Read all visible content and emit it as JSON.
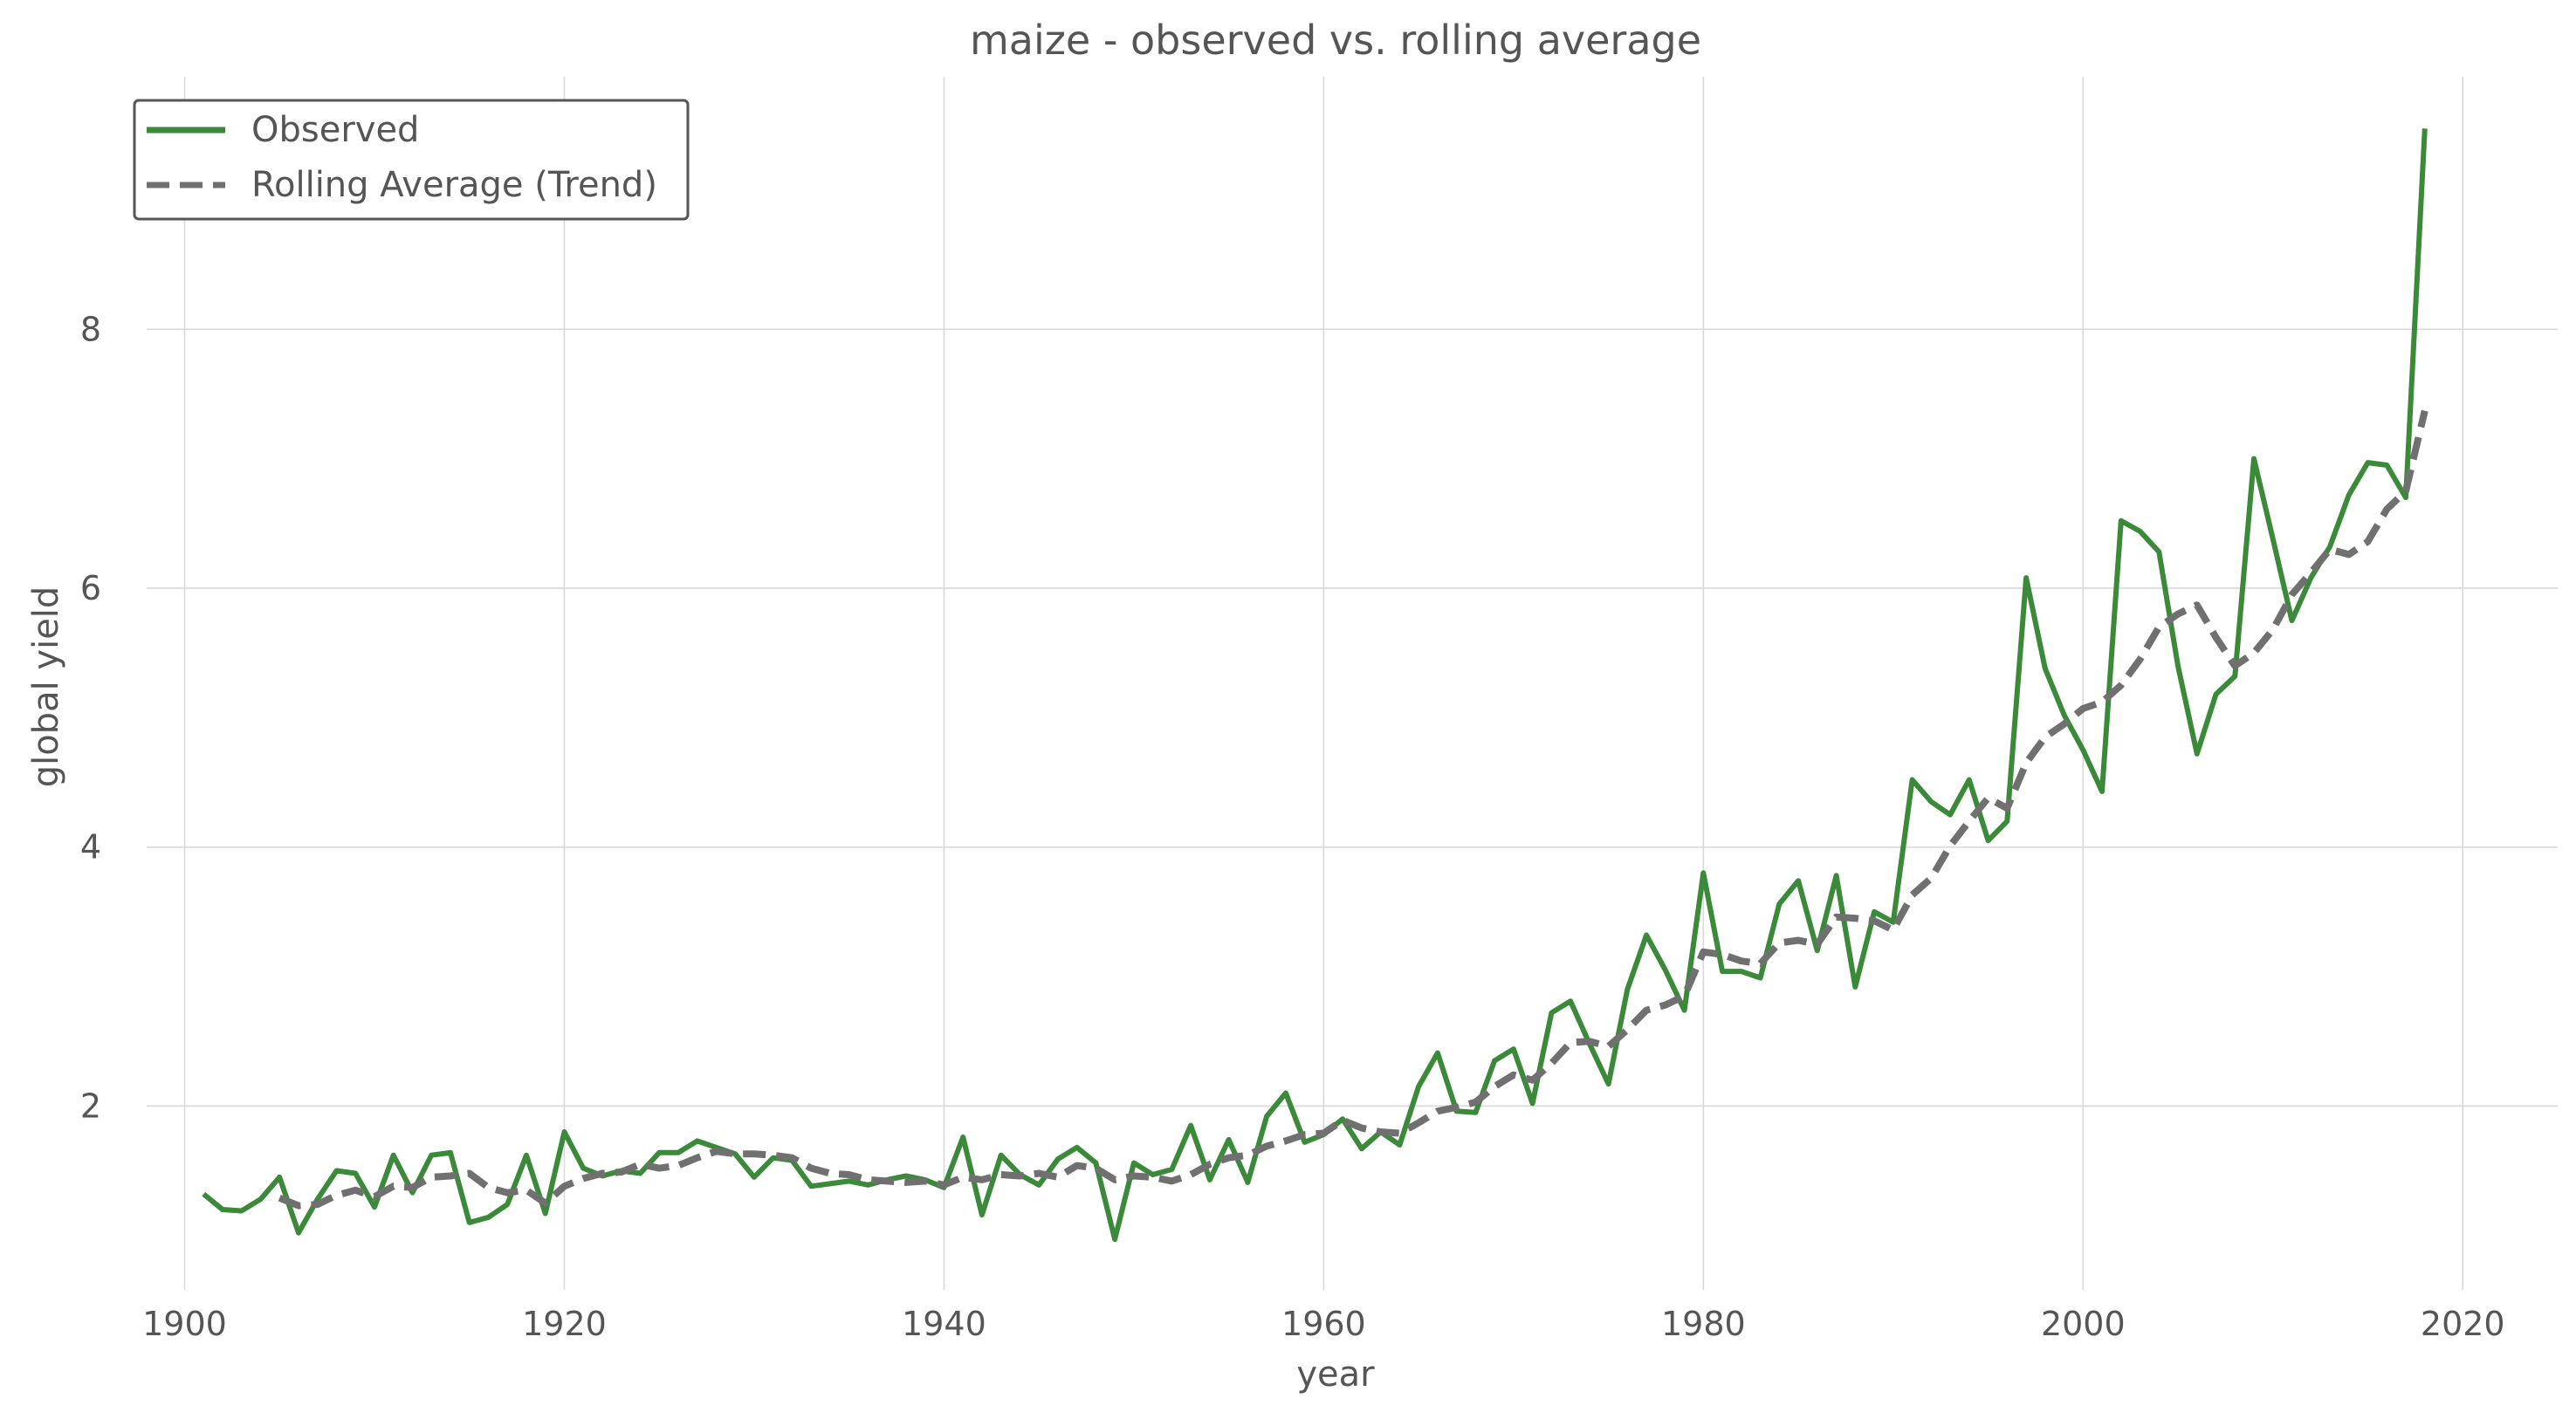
{
  "chart_data": {
    "type": "line",
    "title": "maize - observed vs. rolling average",
    "xlabel": "year",
    "ylabel": "global yield",
    "xlim": [
      1898,
      2025
    ],
    "ylim": [
      0.58,
      9.95
    ],
    "xticks": [
      1900,
      1920,
      1940,
      1960,
      1980,
      2000,
      2020
    ],
    "yticks": [
      2,
      4,
      6,
      8
    ],
    "grid": true,
    "legend_position": "top-left",
    "series": [
      {
        "name": "Observed",
        "color": "#3a8a3a",
        "style": "solid",
        "x": [
          1901,
          1902,
          1903,
          1904,
          1905,
          1906,
          1907,
          1908,
          1909,
          1910,
          1911,
          1912,
          1913,
          1914,
          1915,
          1916,
          1917,
          1918,
          1919,
          1920,
          1921,
          1922,
          1923,
          1924,
          1925,
          1926,
          1927,
          1928,
          1929,
          1930,
          1931,
          1932,
          1933,
          1934,
          1935,
          1936,
          1937,
          1938,
          1939,
          1940,
          1941,
          1942,
          1943,
          1944,
          1945,
          1946,
          1947,
          1948,
          1949,
          1950,
          1951,
          1952,
          1953,
          1954,
          1955,
          1956,
          1957,
          1958,
          1959,
          1960,
          1961,
          1962,
          1963,
          1964,
          1965,
          1966,
          1967,
          1968,
          1969,
          1970,
          1971,
          1972,
          1973,
          1974,
          1975,
          1976,
          1977,
          1978,
          1979,
          1980,
          1981,
          1982,
          1983,
          1984,
          1985,
          1986,
          1987,
          1988,
          1989,
          1990,
          1991,
          1992,
          1993,
          1994,
          1995,
          1996,
          1997,
          1998,
          1999,
          2000,
          2001,
          2002,
          2003,
          2004,
          2005,
          2006,
          2007,
          2008,
          2009,
          2010,
          2011,
          2012,
          2013,
          2014,
          2015,
          2016,
          2017,
          2018
        ],
        "y": [
          1.32,
          1.2,
          1.19,
          1.28,
          1.45,
          1.02,
          1.28,
          1.5,
          1.48,
          1.22,
          1.62,
          1.33,
          1.62,
          1.64,
          1.1,
          1.14,
          1.24,
          1.62,
          1.17,
          1.8,
          1.52,
          1.46,
          1.5,
          1.48,
          1.64,
          1.64,
          1.73,
          1.68,
          1.63,
          1.45,
          1.6,
          1.58,
          1.38,
          1.4,
          1.42,
          1.39,
          1.43,
          1.46,
          1.43,
          1.37,
          1.76,
          1.16,
          1.62,
          1.47,
          1.39,
          1.59,
          1.68,
          1.56,
          0.97,
          1.56,
          1.47,
          1.51,
          1.85,
          1.43,
          1.74,
          1.41,
          1.92,
          2.1,
          1.72,
          1.78,
          1.9,
          1.67,
          1.8,
          1.7,
          2.15,
          2.41,
          1.96,
          1.95,
          2.35,
          2.44,
          2.02,
          2.72,
          2.81,
          2.48,
          2.17,
          2.9,
          3.32,
          3.05,
          2.74,
          3.8,
          3.04,
          3.04,
          2.99,
          3.56,
          3.74,
          3.2,
          3.78,
          2.92,
          3.5,
          3.42,
          4.52,
          4.35,
          4.25,
          4.52,
          4.05,
          4.2,
          6.08,
          5.38,
          5.02,
          4.75,
          4.43,
          6.52,
          6.44,
          6.28,
          5.4,
          4.72,
          5.18,
          5.32,
          7.0,
          6.38,
          5.75,
          6.08,
          6.32,
          6.72,
          6.97,
          6.95,
          6.7,
          9.55
        ]
      },
      {
        "name": "Rolling Average (Trend)",
        "color": "#707070",
        "style": "dashed",
        "x": [
          1905,
          1906,
          1907,
          1908,
          1909,
          1910,
          1911,
          1912,
          1913,
          1914,
          1915,
          1916,
          1917,
          1918,
          1919,
          1920,
          1921,
          1922,
          1923,
          1924,
          1925,
          1926,
          1927,
          1928,
          1929,
          1930,
          1931,
          1932,
          1933,
          1934,
          1935,
          1936,
          1937,
          1938,
          1939,
          1940,
          1941,
          1942,
          1943,
          1944,
          1945,
          1946,
          1947,
          1948,
          1949,
          1950,
          1951,
          1952,
          1953,
          1954,
          1955,
          1956,
          1957,
          1958,
          1959,
          1960,
          1961,
          1962,
          1963,
          1964,
          1965,
          1966,
          1967,
          1968,
          1969,
          1970,
          1971,
          1972,
          1973,
          1974,
          1975,
          1976,
          1977,
          1978,
          1979,
          1980,
          1981,
          1982,
          1983,
          1984,
          1985,
          1986,
          1987,
          1988,
          1989,
          1990,
          1991,
          1992,
          1993,
          1994,
          1995,
          1996,
          1997,
          1998,
          1999,
          2000,
          2001,
          2002,
          2003,
          2004,
          2005,
          2006,
          2007,
          2008,
          2009,
          2010,
          2011,
          2012,
          2013,
          2014,
          2015,
          2016,
          2017,
          2018
        ],
        "y": [
          1.29,
          1.23,
          1.24,
          1.31,
          1.35,
          1.3,
          1.38,
          1.37,
          1.45,
          1.46,
          1.48,
          1.37,
          1.33,
          1.35,
          1.25,
          1.38,
          1.44,
          1.48,
          1.49,
          1.55,
          1.52,
          1.54,
          1.6,
          1.65,
          1.63,
          1.63,
          1.62,
          1.6,
          1.52,
          1.48,
          1.47,
          1.43,
          1.42,
          1.41,
          1.42,
          1.39,
          1.45,
          1.43,
          1.47,
          1.46,
          1.48,
          1.45,
          1.54,
          1.52,
          1.43,
          1.46,
          1.45,
          1.42,
          1.47,
          1.55,
          1.6,
          1.62,
          1.69,
          1.73,
          1.78,
          1.79,
          1.89,
          1.83,
          1.8,
          1.79,
          1.87,
          1.96,
          1.99,
          2.03,
          2.15,
          2.24,
          2.2,
          2.33,
          2.49,
          2.5,
          2.46,
          2.59,
          2.74,
          2.78,
          2.85,
          3.19,
          3.17,
          3.12,
          3.1,
          3.26,
          3.28,
          3.25,
          3.46,
          3.45,
          3.43,
          3.36,
          3.63,
          3.76,
          4.01,
          4.2,
          4.38,
          4.3,
          4.65,
          4.85,
          4.95,
          5.07,
          5.12,
          5.25,
          5.45,
          5.7,
          5.8,
          5.87,
          5.62,
          5.4,
          5.5,
          5.68,
          5.95,
          6.12,
          6.3,
          6.26,
          6.36,
          6.61,
          6.75,
          7.37
        ]
      }
    ]
  }
}
